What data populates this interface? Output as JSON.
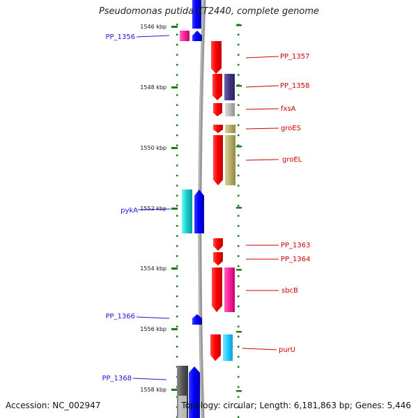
{
  "title": "Pseudomonas putida KT2440, complete genome",
  "accession": "Accession: NC_002947",
  "topology": "Topology: circular; Length: 6,181,863 bp; Genes: 5,446",
  "ticks": [
    "1546 kbp",
    "1548 kbp",
    "1550 kbp",
    "1552 kbp",
    "1554 kbp",
    "1556 kbp",
    "1558 kbp"
  ],
  "genes_left": [
    "PP_1356",
    "pykA",
    "PP_1366",
    "PP_1368"
  ],
  "genes_right": [
    "PP_1357",
    "PP_1358",
    "fxsA",
    "groES",
    "groEL",
    "PP_1363",
    "PP_1364",
    "sbcB",
    "purU"
  ],
  "colors": {
    "forward": "#0000ff",
    "reverse": "#ff0000",
    "backbone": "#999999",
    "tick": "#1a7a1a",
    "label_left": "#1a1ad0",
    "label_right": "#cc0000"
  }
}
